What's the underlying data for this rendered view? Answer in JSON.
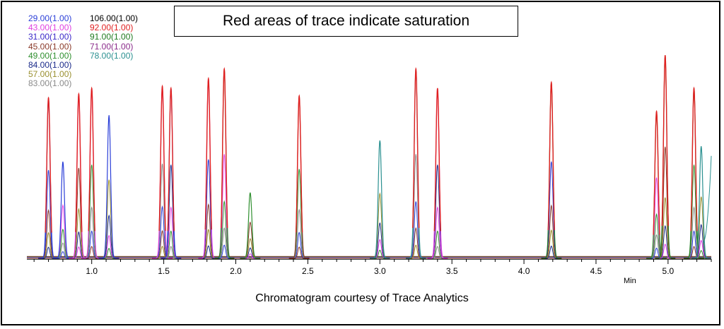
{
  "chart_data": {
    "type": "line",
    "title": "Red areas of trace indicate saturation",
    "caption": "Chromatogram courtesy of Trace Analytics",
    "xlabel": "Min",
    "xlim": [
      0.55,
      5.3
    ],
    "x_ticks": [
      "1.0",
      "1.5",
      "2.0",
      "2.5",
      "3.0",
      "3.5",
      "4.0",
      "4.5",
      "5.0"
    ],
    "saturation_color": "#e02020",
    "legend": {
      "column1": [
        {
          "mass": "29.00",
          "scale": "(1.00)",
          "color": "#2b3fd8"
        },
        {
          "mass": "43.00",
          "scale": "(1.00)",
          "color": "#e040e0"
        },
        {
          "mass": "31.00",
          "scale": "(1.00)",
          "color": "#3a28c8"
        },
        {
          "mass": "45.00",
          "scale": "(1.00)",
          "color": "#8a3a2a"
        },
        {
          "mass": "49.00",
          "scale": "(1.00)",
          "color": "#2f8f2f"
        },
        {
          "mass": "84.00",
          "scale": "(1.00)",
          "color": "#1a2a8a"
        },
        {
          "mass": "57.00",
          "scale": "(1.00)",
          "color": "#9a9030"
        },
        {
          "mass": "83.00",
          "scale": "(1.00)",
          "color": "#8a8a8a"
        }
      ],
      "column2": [
        {
          "mass": "106.00",
          "scale": "(1.00)",
          "color": "#000000"
        },
        {
          "mass": "92.00",
          "scale": "(1.00)",
          "color": "#e02020"
        },
        {
          "mass": "91.00",
          "scale": "(1.00)",
          "color": "#1e7a1e"
        },
        {
          "mass": "71.00",
          "scale": "(1.00)",
          "color": "#8a2a8a"
        },
        {
          "mass": "78.00",
          "scale": "(1.00)",
          "color": "#2a9090"
        }
      ]
    },
    "peaks": [
      {
        "x": 0.7,
        "height": 0.83,
        "color": "#2b3fd8",
        "saturated": true
      },
      {
        "x": 0.8,
        "height": 0.5,
        "color": "#2b3fd8",
        "saturated": false
      },
      {
        "x": 0.91,
        "height": 0.85,
        "color": "#e040e0",
        "saturated": true
      },
      {
        "x": 1.0,
        "height": 0.88,
        "color": "#e040e0",
        "saturated": true
      },
      {
        "x": 1.12,
        "height": 0.74,
        "color": "#2b3fd8",
        "saturated": false
      },
      {
        "x": 1.49,
        "height": 0.89,
        "color": "#e040e0",
        "saturated": true
      },
      {
        "x": 1.55,
        "height": 0.88,
        "color": "#2b3fd8",
        "saturated": true
      },
      {
        "x": 1.81,
        "height": 0.93,
        "color": "#e040e0",
        "saturated": true
      },
      {
        "x": 1.92,
        "height": 0.98,
        "color": "#1e7a1e",
        "saturated": true
      },
      {
        "x": 2.1,
        "height": 0.34,
        "color": "#2f8f2f",
        "saturated": false
      },
      {
        "x": 2.44,
        "height": 0.84,
        "color": "#8a3a2a",
        "saturated": true
      },
      {
        "x": 3.0,
        "height": 0.61,
        "color": "#2a9090",
        "saturated": false
      },
      {
        "x": 3.25,
        "height": 0.98,
        "color": "#2a9090",
        "saturated": true
      },
      {
        "x": 3.4,
        "height": 0.88,
        "color": "#e040e0",
        "saturated": true
      },
      {
        "x": 4.19,
        "height": 0.91,
        "color": "#1e7a1e",
        "saturated": true
      },
      {
        "x": 4.92,
        "height": 0.76,
        "color": "#2f8f2f",
        "saturated": true
      },
      {
        "x": 4.98,
        "height": 1.05,
        "color": "#1e7a1e",
        "saturated": true
      },
      {
        "x": 5.18,
        "height": 0.88,
        "color": "#1e7a1e",
        "saturated": true
      },
      {
        "x": 5.23,
        "height": 0.58,
        "color": "#2a9090",
        "saturated": false
      }
    ]
  }
}
